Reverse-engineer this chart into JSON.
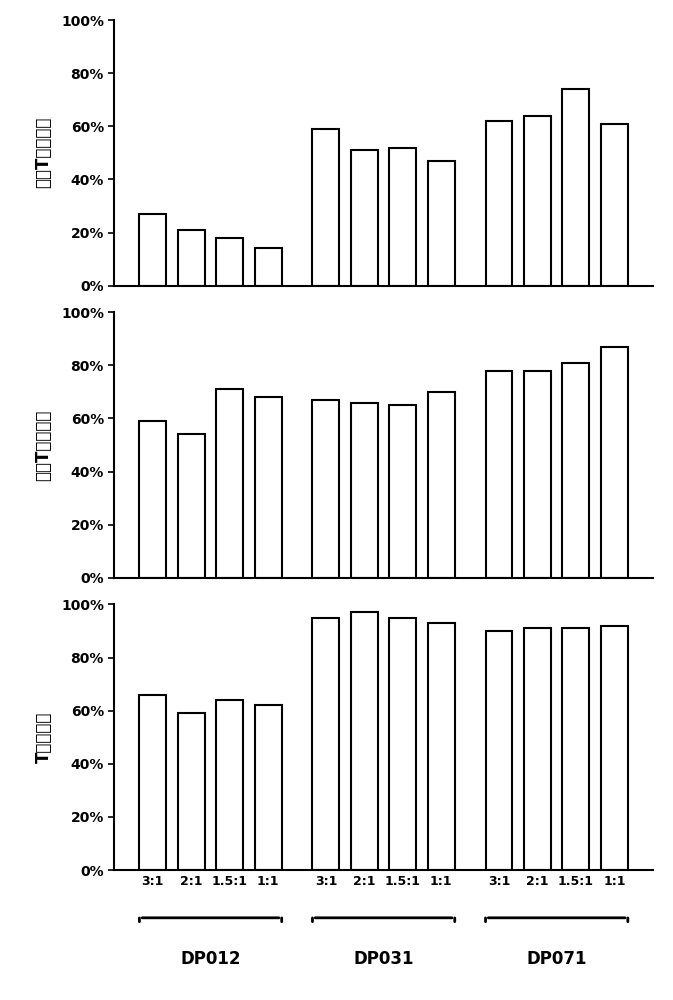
{
  "chart1_ylabel": "分选T细胞得率",
  "chart2_ylabel": "分选T细胞纯度",
  "chart3_ylabel": "T细胞激活",
  "chart1_values": [
    0.27,
    0.21,
    0.18,
    0.14,
    0.59,
    0.51,
    0.52,
    0.47,
    0.62,
    0.64,
    0.74,
    0.61
  ],
  "chart2_values": [
    0.59,
    0.54,
    0.71,
    0.68,
    0.67,
    0.66,
    0.65,
    0.7,
    0.78,
    0.78,
    0.81,
    0.87
  ],
  "chart3_values": [
    0.66,
    0.59,
    0.64,
    0.62,
    0.95,
    0.97,
    0.95,
    0.93,
    0.9,
    0.91,
    0.91,
    0.92
  ],
  "x_tick_labels": [
    "3:1",
    "2:1",
    "1.5:1",
    "1:1",
    "3:1",
    "2:1",
    "1.5:1",
    "1:1",
    "3:1",
    "2:1",
    "1.5:1",
    "1:1"
  ],
  "group_labels": [
    "DP012",
    "DP031",
    "DP071"
  ],
  "bar_color": "#ffffff",
  "bar_edge_color": "#000000",
  "background_color": "#ffffff",
  "ylim": [
    0,
    1.0
  ],
  "yticks": [
    0.0,
    0.2,
    0.4,
    0.6,
    0.8,
    1.0
  ],
  "ytick_labels": [
    "0%",
    "20%",
    "40%",
    "60%",
    "80%",
    "100%"
  ]
}
